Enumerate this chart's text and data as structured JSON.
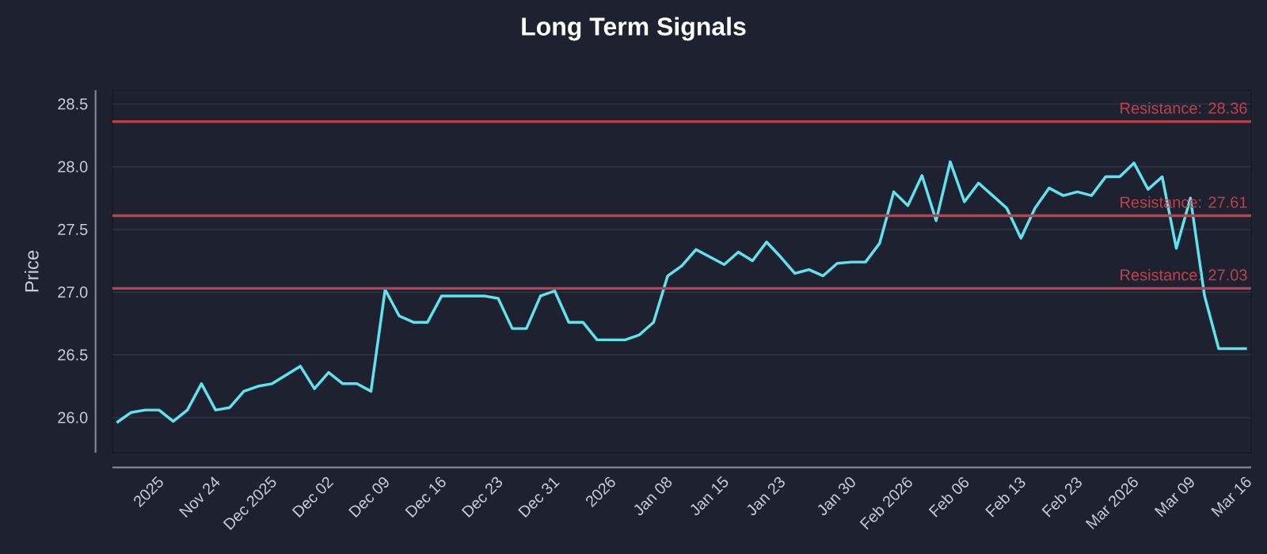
{
  "chart_data": {
    "type": "line",
    "title": "Long Term Signals",
    "ylabel": "Price",
    "categories": [
      null,
      null,
      "2025",
      null,
      null,
      null,
      "Nov 24",
      null,
      null,
      null,
      "Dec 2025",
      null,
      null,
      null,
      "Dec 02",
      null,
      null,
      null,
      "Dec 09",
      null,
      null,
      null,
      "Dec 16",
      null,
      null,
      null,
      "Dec 23",
      null,
      null,
      null,
      "Dec 31",
      null,
      null,
      null,
      "2026",
      null,
      null,
      null,
      "Jan 08",
      null,
      null,
      null,
      "Jan 15",
      null,
      null,
      null,
      "Jan 23",
      null,
      null,
      null,
      null,
      "Jan 30",
      null,
      null,
      null,
      "Feb 2026",
      null,
      null,
      null,
      "Feb 06",
      null,
      null,
      null,
      "Feb 13",
      null,
      null,
      null,
      "Feb 23",
      null,
      null,
      null,
      "Mar 2026",
      null,
      null,
      null,
      "Mar 09",
      null,
      null,
      null,
      "Mar 16",
      null
    ],
    "series": [
      {
        "color": "#5fe3ee",
        "values": [
          25.96,
          26.04,
          26.06,
          26.06,
          25.97,
          26.06,
          26.27,
          26.06,
          26.08,
          26.21,
          26.25,
          26.27,
          26.34,
          26.41,
          26.23,
          26.36,
          26.27,
          26.27,
          26.21,
          27.02,
          26.81,
          26.76,
          26.76,
          26.97,
          26.97,
          26.97,
          26.97,
          26.95,
          26.71,
          26.71,
          26.97,
          27.01,
          26.76,
          26.76,
          26.62,
          26.62,
          26.62,
          26.66,
          26.76,
          27.13,
          27.21,
          27.34,
          27.28,
          27.22,
          27.32,
          27.25,
          27.4,
          27.28,
          27.15,
          27.18,
          27.13,
          27.23,
          27.24,
          27.24,
          27.39,
          27.8,
          27.69,
          27.93,
          27.57,
          28.04,
          27.72,
          27.87,
          27.77,
          27.67,
          27.43,
          27.67,
          27.83,
          27.77,
          27.8,
          27.77,
          27.92,
          27.92,
          28.03,
          27.82,
          27.92,
          27.35,
          27.75,
          26.97,
          26.55,
          26.55,
          26.55
        ]
      }
    ],
    "ylim": [
      25.72,
      28.61
    ],
    "yticks": [
      {
        "value": 26.0,
        "label": "26.0"
      },
      {
        "value": 26.5,
        "label": "26.5"
      },
      {
        "value": 27.0,
        "label": "27.0"
      },
      {
        "value": 27.5,
        "label": "27.5"
      },
      {
        "value": 28.0,
        "label": "28.0"
      },
      {
        "value": 28.5,
        "label": "28.5"
      }
    ],
    "grid": "y",
    "marker": "none",
    "ref_lines": [
      {
        "axis": "y",
        "value": 28.36,
        "label": "Resistance: 28.36",
        "color": "#c0404a"
      },
      {
        "axis": "y",
        "value": 27.61,
        "label": "Resistance: 27.61",
        "color": "#c0404a"
      },
      {
        "axis": "y",
        "value": 27.03,
        "label": "Resistance: 27.03",
        "color": "#c0404a"
      }
    ]
  }
}
